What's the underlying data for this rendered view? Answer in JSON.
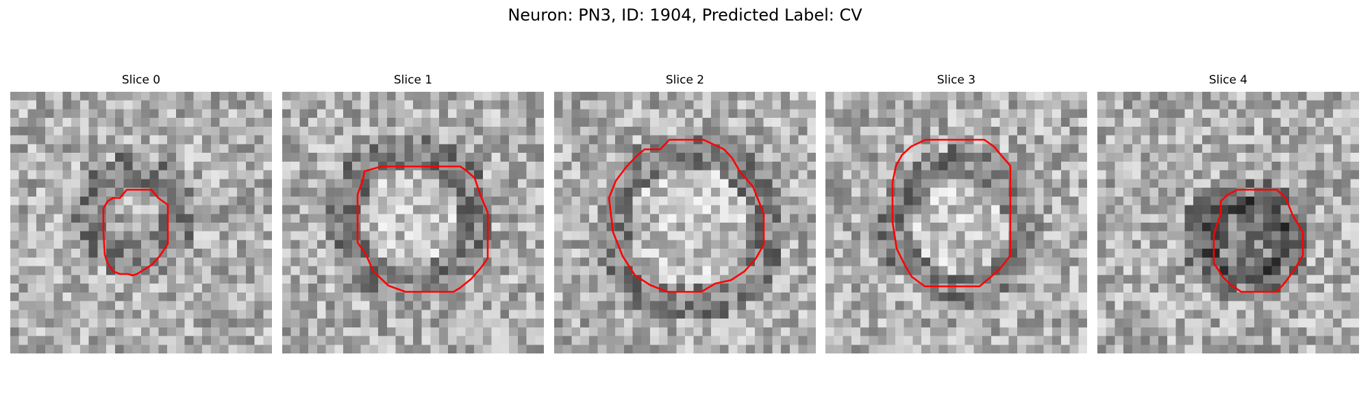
{
  "figure": {
    "title": "Neuron: PN3, ID: 1904, Predicted Label: CV"
  },
  "contour_color": "#ff0000",
  "panels": [
    {
      "title": "Slice 0",
      "seed": 11,
      "center": 0.46,
      "radius": 0.17
    },
    {
      "title": "Slice 1",
      "seed": 23,
      "center": 0.47,
      "radius": 0.25
    },
    {
      "title": "Slice 2",
      "seed": 37,
      "center": 0.5,
      "radius": 0.3
    },
    {
      "title": "Slice 3",
      "seed": 51,
      "center": 0.5,
      "radius": 0.24
    },
    {
      "title": "Slice 4",
      "seed": 67,
      "center": 0.55,
      "radius": 0.18
    }
  ]
}
